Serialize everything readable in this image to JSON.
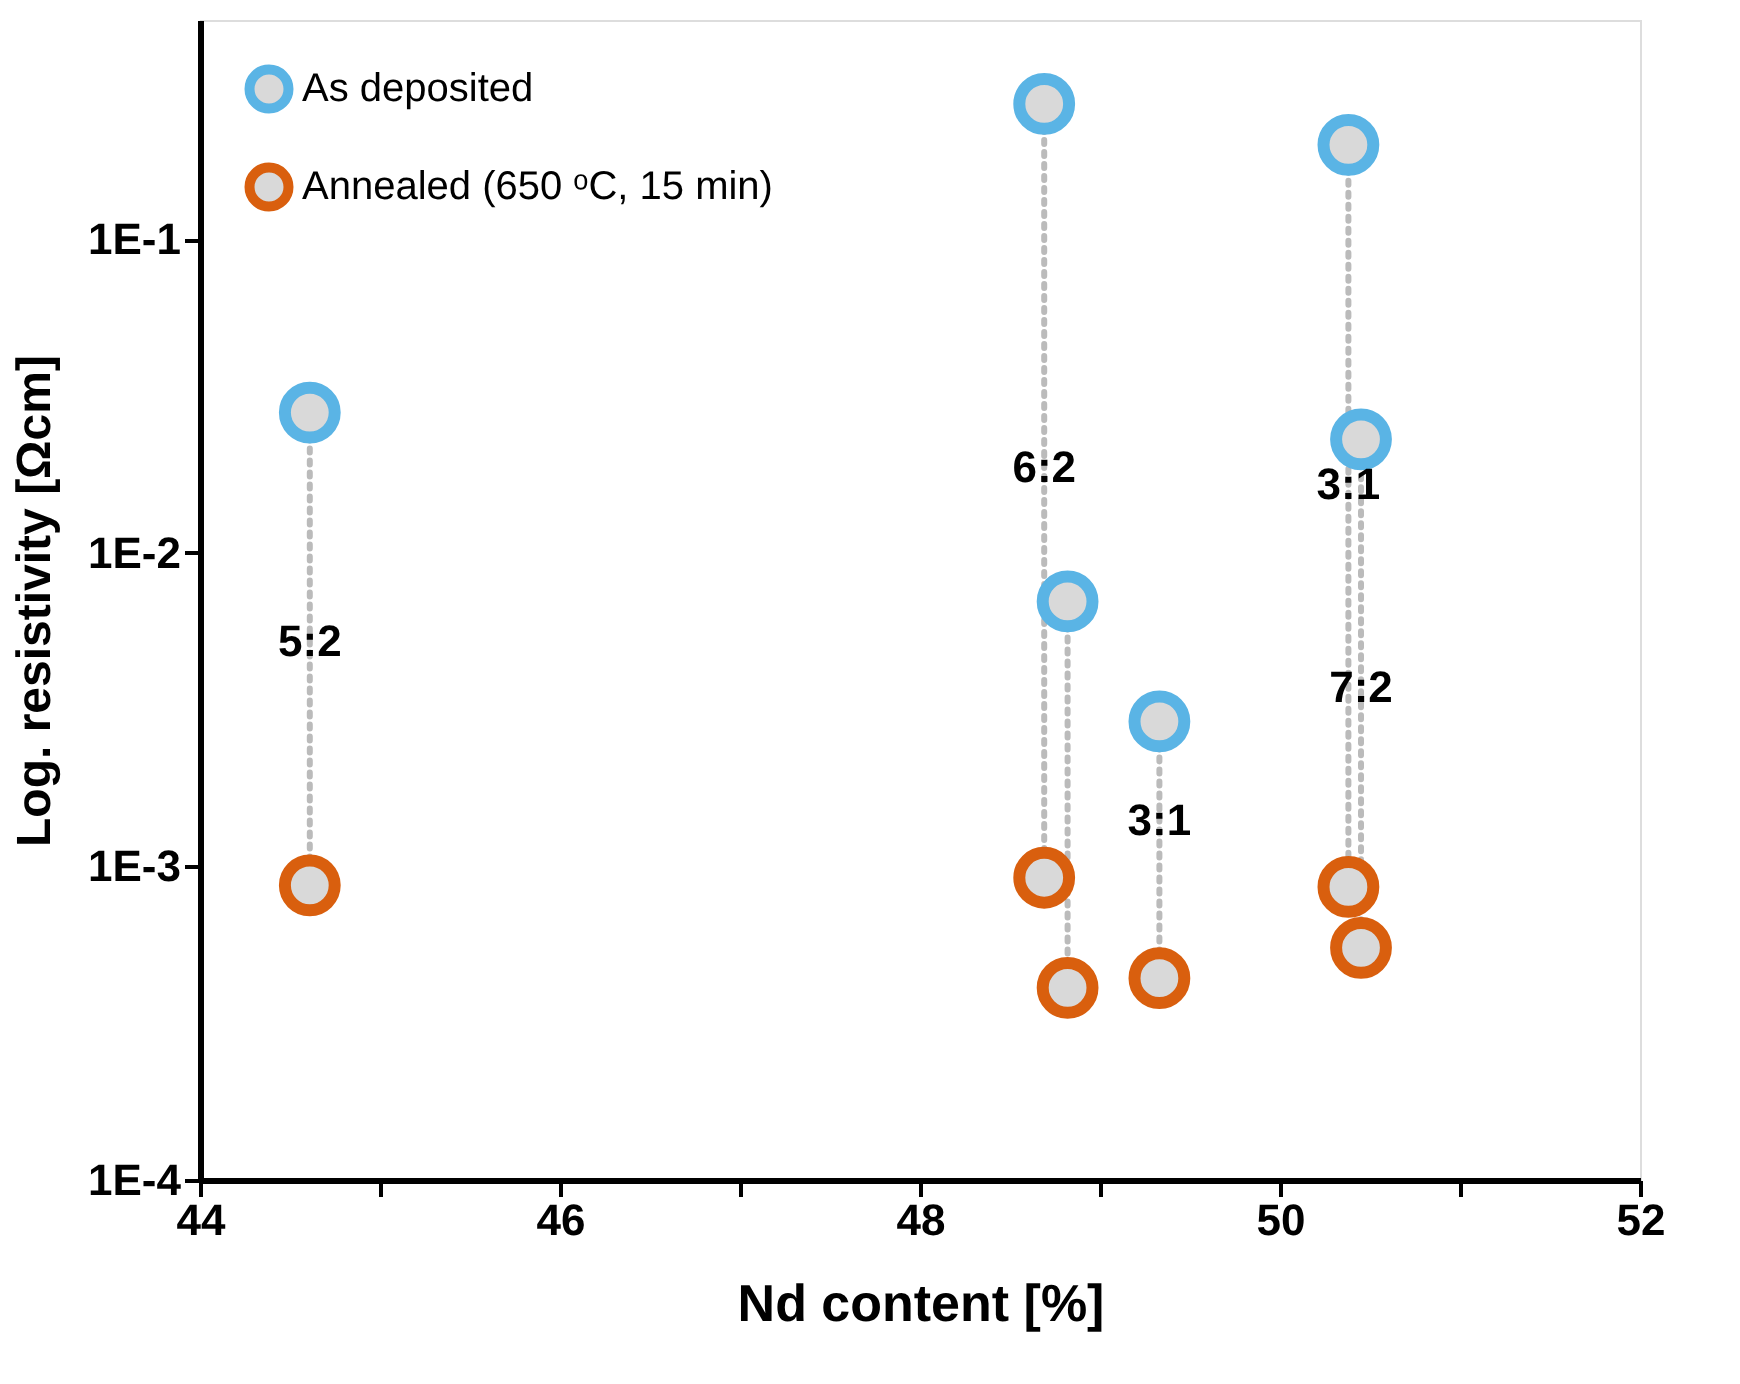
{
  "chart_data": {
    "type": "scatter",
    "xlabel": "Nd content [%]",
    "ylabel": "Log. resistivity [Ωcm]",
    "log": "y",
    "legend": "top left",
    "grid": false,
    "xlim": [
      44,
      52
    ],
    "xticks": [
      44,
      {
        "value": 45,
        "label": null
      },
      46,
      {
        "value": 47,
        "label": null
      },
      48,
      {
        "value": 49,
        "label": null
      },
      50,
      {
        "value": 51,
        "label": null
      },
      52
    ],
    "ylim": [
      0.0001,
      0.5
    ],
    "yticks": [
      {
        "value": 0.0001,
        "label": "1E-4"
      },
      {
        "value": 0.001,
        "label": "1E-3"
      },
      {
        "value": 0.01,
        "label": "1E-2"
      },
      {
        "value": 0.1,
        "label": "1E-1"
      }
    ],
    "series": [
      {
        "type": "line",
        "line_style": "dotted",
        "color": "#bbbbbb",
        "x": [
          44.61,
          44.61
        ],
        "values": [
          0.028,
          0.00087
        ]
      },
      {
        "type": "line",
        "line_style": "dotted",
        "color": "#bbbbbb",
        "x": [
          48.69,
          48.69
        ],
        "values": [
          0.27,
          0.00092
        ]
      },
      {
        "type": "line",
        "line_style": "dotted",
        "color": "#bbbbbb",
        "x": [
          48.82,
          48.82
        ],
        "values": [
          0.007,
          0.00041
        ]
      },
      {
        "type": "line",
        "line_style": "dotted",
        "color": "#bbbbbb",
        "x": [
          49.33,
          49.33
        ],
        "values": [
          0.0029,
          0.00044
        ]
      },
      {
        "type": "line",
        "line_style": "dotted",
        "color": "#bbbbbb",
        "x": [
          50.38,
          50.38
        ],
        "values": [
          0.2,
          0.00086
        ]
      },
      {
        "type": "line",
        "line_style": "dotted",
        "color": "#bbbbbb",
        "x": [
          50.45,
          50.45
        ],
        "values": [
          0.023,
          0.00055
        ]
      },
      {
        "name": "As deposited",
        "color": "#5ab4e5",
        "x": [
          44.61,
          48.69,
          50.38,
          50.45,
          48.82,
          49.33
        ],
        "values": [
          0.028,
          0.27,
          0.2,
          0.023,
          0.007,
          0.0029
        ]
      },
      {
        "name": "Annealed (650 ᵒC, 15 min)",
        "color": "#d95f0e",
        "x": [
          44.61,
          48.69,
          48.82,
          49.33,
          50.38,
          50.45
        ],
        "values": [
          0.00087,
          0.00092,
          0.00041,
          0.00044,
          0.00086,
          0.00055
        ]
      }
    ],
    "annotations": [
      {
        "text": "5:2",
        "x": 44.61,
        "y": 0.0052
      },
      {
        "text": "6:2",
        "x": 48.69,
        "y": 0.0187
      },
      {
        "text": "3:1",
        "x": 50.38,
        "y": 0.0164
      },
      {
        "text": "3:1",
        "x": 49.33,
        "y": 0.0014
      },
      {
        "text": "7:2",
        "x": 50.45,
        "y": 0.0037
      }
    ]
  }
}
